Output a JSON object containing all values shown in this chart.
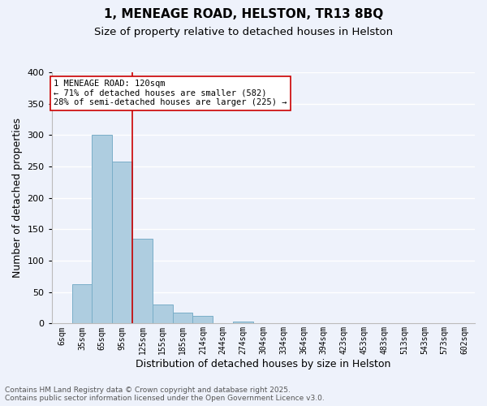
{
  "title": "1, MENEAGE ROAD, HELSTON, TR13 8BQ",
  "subtitle": "Size of property relative to detached houses in Helston",
  "xlabel": "Distribution of detached houses by size in Helston",
  "ylabel": "Number of detached properties",
  "bar_labels": [
    "6sqm",
    "35sqm",
    "65sqm",
    "95sqm",
    "125sqm",
    "155sqm",
    "185sqm",
    "214sqm",
    "244sqm",
    "274sqm",
    "304sqm",
    "334sqm",
    "364sqm",
    "394sqm",
    "423sqm",
    "453sqm",
    "483sqm",
    "513sqm",
    "543sqm",
    "573sqm",
    "602sqm"
  ],
  "bar_values": [
    0,
    62,
    300,
    258,
    135,
    30,
    17,
    12,
    0,
    3,
    0,
    0,
    0,
    0,
    0,
    0,
    1,
    0,
    0,
    0,
    0
  ],
  "bar_color": "#aecde0",
  "bar_edge_color": "#7aaec8",
  "vline_x": 4,
  "vline_color": "#cc0000",
  "ylim": [
    0,
    400
  ],
  "yticks": [
    0,
    50,
    100,
    150,
    200,
    250,
    300,
    350,
    400
  ],
  "annotation_title": "1 MENEAGE ROAD: 120sqm",
  "annotation_line1": "← 71% of detached houses are smaller (582)",
  "annotation_line2": "28% of semi-detached houses are larger (225) →",
  "annotation_box_color": "#ffffff",
  "annotation_box_edge": "#cc0000",
  "footer_line1": "Contains HM Land Registry data © Crown copyright and database right 2025.",
  "footer_line2": "Contains public sector information licensed under the Open Government Licence v3.0.",
  "background_color": "#eef2fb",
  "grid_color": "#ffffff",
  "title_fontsize": 11,
  "subtitle_fontsize": 9.5,
  "axis_label_fontsize": 9,
  "tick_fontsize": 7,
  "annotation_fontsize": 7.5,
  "footer_fontsize": 6.5
}
